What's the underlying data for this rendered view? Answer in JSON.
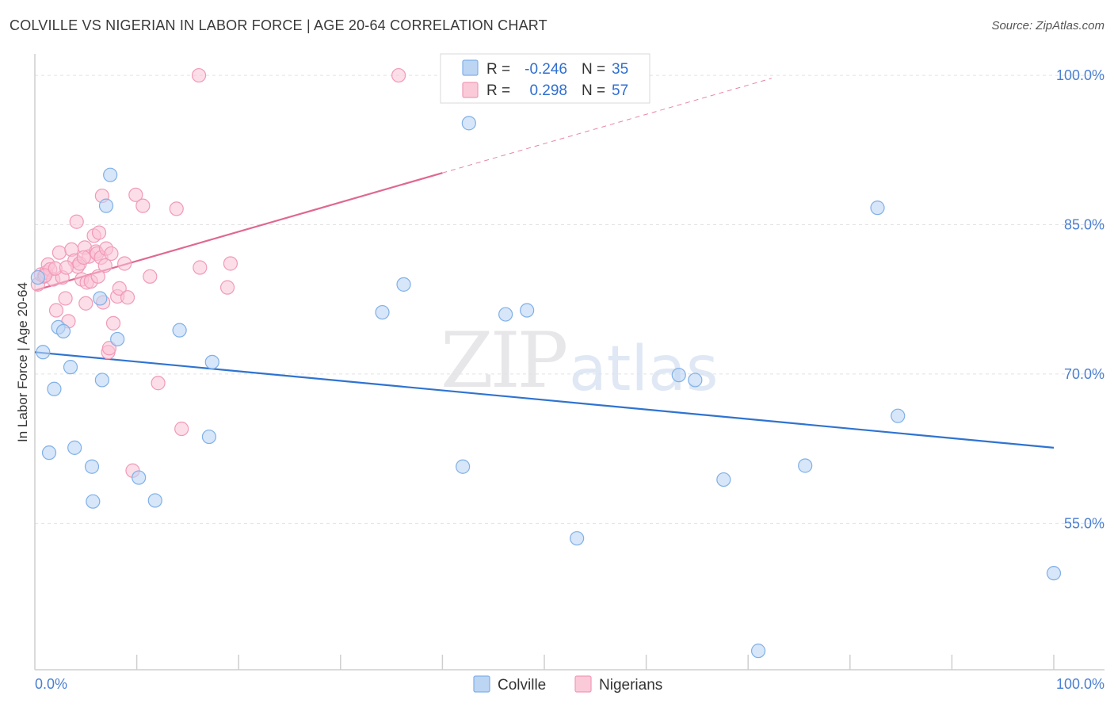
{
  "title": "COLVILLE VS NIGERIAN IN LABOR FORCE | AGE 20-64 CORRELATION CHART",
  "source": "Source: ZipAtlas.com",
  "watermark": {
    "zip": "ZIP",
    "atlas": "atlas"
  },
  "colors": {
    "colville": "#7fb0e8",
    "colville_line": "#2f73d0",
    "nigerians": "#f19ab6",
    "nigerians_line": "#e06890",
    "tick_text": "#4a7fd0"
  },
  "legend": {
    "rows": [
      {
        "r_label": "R =",
        "r_value": "-0.246",
        "n_label": "N =",
        "n_value": "35"
      },
      {
        "r_label": "R =",
        "r_value": "0.298",
        "n_label": "N =",
        "n_value": "57"
      }
    ]
  },
  "bottom_legend": {
    "colville": "Colville",
    "nigerians": "Nigerians"
  },
  "chart_data": {
    "type": "scatter",
    "title": "COLVILLE VS NIGERIAN IN LABOR FORCE | AGE 20-64 CORRELATION CHART",
    "xlabel": "",
    "ylabel": "In Labor Force | Age 20-64",
    "xlim": [
      0,
      100
    ],
    "ylim": [
      40.3,
      101.2
    ],
    "y_ticks": [
      {
        "value": 55,
        "label": "55.0%"
      },
      {
        "value": 70,
        "label": "70.0%"
      },
      {
        "value": 85,
        "label": "85.0%"
      },
      {
        "value": 100,
        "label": "100.0%"
      }
    ],
    "x_tick_labels": {
      "left": "0.0%",
      "right": "100.0%"
    },
    "x_minor_ticks": [
      10,
      20,
      30,
      40,
      50,
      60,
      70,
      80,
      90,
      100
    ],
    "series": [
      {
        "name": "Colville",
        "r": -0.246,
        "n": 35,
        "trend": {
          "x0": 0,
          "y0": 72.2,
          "x1": 100,
          "y1": 62.6
        },
        "points": [
          [
            0.8,
            72.2
          ],
          [
            1.4,
            62.1
          ],
          [
            1.9,
            68.5
          ],
          [
            2.3,
            74.7
          ],
          [
            2.8,
            74.3
          ],
          [
            3.5,
            70.7
          ],
          [
            3.9,
            62.6
          ],
          [
            5.6,
            60.7
          ],
          [
            5.7,
            57.2
          ],
          [
            6.4,
            77.6
          ],
          [
            6.6,
            69.4
          ],
          [
            7.0,
            86.9
          ],
          [
            7.4,
            90.0
          ],
          [
            8.1,
            73.5
          ],
          [
            10.2,
            59.6
          ],
          [
            11.8,
            57.3
          ],
          [
            14.2,
            74.4
          ],
          [
            17.1,
            63.7
          ],
          [
            17.4,
            71.2
          ],
          [
            34.1,
            76.2
          ],
          [
            36.2,
            79.0
          ],
          [
            42.0,
            60.7
          ],
          [
            42.6,
            95.2
          ],
          [
            46.2,
            76.0
          ],
          [
            48.3,
            76.4
          ],
          [
            53.2,
            53.5
          ],
          [
            63.2,
            69.9
          ],
          [
            64.8,
            69.4
          ],
          [
            67.6,
            59.4
          ],
          [
            71.0,
            42.2
          ],
          [
            75.6,
            60.8
          ],
          [
            82.7,
            86.7
          ],
          [
            84.7,
            65.8
          ],
          [
            100.0,
            50.0
          ],
          [
            0.3,
            79.7
          ]
        ]
      },
      {
        "name": "Nigerians",
        "r": 0.298,
        "n": 57,
        "trend_solid": {
          "x0": 0,
          "y0": 78.4,
          "x1": 40,
          "y1": 90.2
        },
        "trend_dashed": {
          "x0": 40,
          "y0": 90.2,
          "x1": 72.3,
          "y1": 99.7
        },
        "points": [
          [
            0.3,
            79.0
          ],
          [
            0.6,
            80.0
          ],
          [
            0.9,
            79.8
          ],
          [
            1.1,
            80.2
          ],
          [
            1.3,
            81.0
          ],
          [
            1.5,
            80.5
          ],
          [
            1.8,
            79.5
          ],
          [
            2.1,
            76.4
          ],
          [
            2.4,
            82.2
          ],
          [
            2.7,
            79.7
          ],
          [
            3.0,
            77.6
          ],
          [
            3.3,
            75.3
          ],
          [
            3.6,
            82.5
          ],
          [
            3.9,
            81.4
          ],
          [
            4.1,
            85.3
          ],
          [
            4.2,
            80.8
          ],
          [
            4.4,
            81.1
          ],
          [
            4.6,
            79.5
          ],
          [
            4.9,
            82.7
          ],
          [
            5.0,
            77.1
          ],
          [
            5.1,
            79.2
          ],
          [
            5.3,
            81.8
          ],
          [
            5.5,
            79.3
          ],
          [
            5.8,
            83.9
          ],
          [
            6.0,
            82.3
          ],
          [
            6.1,
            82.1
          ],
          [
            6.3,
            84.2
          ],
          [
            6.5,
            81.7
          ],
          [
            6.6,
            87.9
          ],
          [
            6.7,
            77.2
          ],
          [
            6.9,
            80.9
          ],
          [
            7.0,
            82.6
          ],
          [
            7.2,
            72.2
          ],
          [
            7.3,
            72.6
          ],
          [
            7.5,
            82.1
          ],
          [
            7.7,
            75.1
          ],
          [
            8.1,
            77.8
          ],
          [
            8.3,
            78.6
          ],
          [
            8.8,
            81.1
          ],
          [
            9.1,
            77.7
          ],
          [
            9.6,
            60.3
          ],
          [
            9.9,
            88.0
          ],
          [
            10.6,
            86.9
          ],
          [
            11.3,
            79.8
          ],
          [
            12.1,
            69.1
          ],
          [
            13.9,
            86.6
          ],
          [
            14.4,
            64.5
          ],
          [
            16.1,
            100.0
          ],
          [
            16.2,
            80.7
          ],
          [
            18.9,
            78.7
          ],
          [
            19.2,
            81.1
          ],
          [
            35.7,
            100.0
          ],
          [
            1.0,
            79.9
          ],
          [
            2.0,
            80.6
          ],
          [
            3.1,
            80.7
          ],
          [
            4.8,
            81.7
          ],
          [
            6.2,
            79.8
          ]
        ]
      }
    ]
  }
}
